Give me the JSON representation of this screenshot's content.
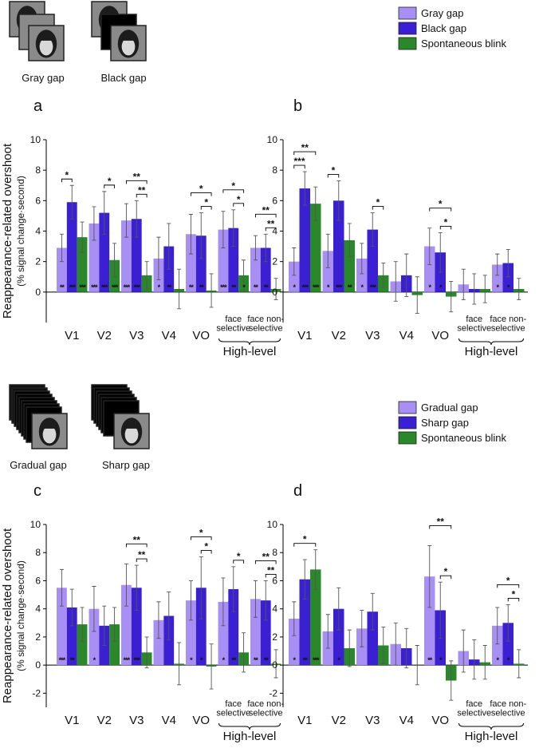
{
  "illustrations": [
    {
      "labels": [
        "Gray gap",
        "Black gap"
      ]
    },
    {
      "labels": [
        "Gradual gap",
        "Sharp gap"
      ]
    }
  ],
  "chart_data": [
    {
      "type": "bar",
      "panel": "a",
      "ylabel": "Reappearance-related overshoot",
      "ylabel_sub": "(% signal change·second)",
      "categories": [
        "V1",
        "V2",
        "V3",
        "V4",
        "VO",
        "face\nselective",
        "face non-\nselective"
      ],
      "group_label": "High-level",
      "ylim": [
        -2,
        10
      ],
      "yticks": [
        0,
        2,
        4,
        6,
        8,
        10
      ],
      "series": [
        {
          "color": "#a88ff4",
          "values": [
            2.9,
            4.5,
            4.7,
            2.2,
            3.8,
            4.1,
            2.9
          ],
          "errors": [
            0.9,
            1.1,
            1.1,
            1.4,
            1.3,
            1.2,
            0.8
          ],
          "stars": [
            "**",
            "***",
            "***",
            "*",
            "**",
            "***",
            "**"
          ]
        },
        {
          "color": "#3a20d2",
          "values": [
            5.9,
            5.2,
            4.8,
            3.0,
            3.7,
            4.2,
            2.9
          ],
          "errors": [
            1.1,
            1.4,
            1.2,
            1.5,
            1.5,
            1.2,
            0.9
          ],
          "stars": [
            "***",
            "***",
            "***",
            "**",
            "**",
            "**",
            "**"
          ]
        },
        {
          "color": "#2a882a",
          "values": [
            3.6,
            2.1,
            1.1,
            0.2,
            0.1,
            1.1,
            0.2
          ],
          "errors": [
            1.0,
            1.1,
            0.9,
            1.3,
            1.1,
            1.0,
            0.7
          ],
          "stars": [
            "***",
            "***",
            null,
            null,
            null,
            "*",
            null
          ]
        }
      ],
      "comparisons": [
        {
          "category": 0,
          "series": [
            0,
            1
          ],
          "label": "*"
        },
        {
          "category": 1,
          "series": [
            1,
            2
          ],
          "label": "*"
        },
        {
          "category": 2,
          "series": [
            1,
            2
          ],
          "label": "**"
        },
        {
          "category": 2,
          "series": [
            0,
            2
          ],
          "label": "**"
        },
        {
          "category": 4,
          "series": [
            1,
            2
          ],
          "label": "*"
        },
        {
          "category": 4,
          "series": [
            0,
            2
          ],
          "label": "*"
        },
        {
          "category": 5,
          "series": [
            1,
            2
          ],
          "label": "*"
        },
        {
          "category": 5,
          "series": [
            0,
            2
          ],
          "label": "*"
        },
        {
          "category": 6,
          "series": [
            1,
            2
          ],
          "label": "**"
        },
        {
          "category": 6,
          "series": [
            0,
            2
          ],
          "label": "**"
        }
      ]
    },
    {
      "type": "bar",
      "panel": "b",
      "legend": "top",
      "categories": [
        "V1",
        "V2",
        "V3",
        "V4",
        "VO",
        "face\nselective",
        "face non-\nselective"
      ],
      "group_label": "High-level",
      "ylim": [
        -2,
        10
      ],
      "yticks": [
        0,
        2,
        4,
        6,
        8,
        10
      ],
      "series": [
        {
          "name": "Gray gap",
          "color": "#a88ff4",
          "values": [
            2.0,
            2.7,
            2.2,
            0.7,
            3.0,
            0.5,
            1.8
          ],
          "errors": [
            0.9,
            1.1,
            1.0,
            1.3,
            1.2,
            1.0,
            0.7
          ],
          "stars": [
            "*",
            "*",
            "*",
            null,
            "*",
            null,
            "*"
          ]
        },
        {
          "name": "Black gap",
          "color": "#3a20d2",
          "values": [
            6.8,
            6.0,
            4.1,
            1.1,
            2.6,
            0.2,
            1.9
          ],
          "errors": [
            1.1,
            1.3,
            1.1,
            1.4,
            1.3,
            1.0,
            0.9
          ],
          "stars": [
            "***",
            "***",
            "***",
            null,
            "*",
            null,
            "*"
          ]
        },
        {
          "name": "Spontaneous blink",
          "color": "#2a882a",
          "values": [
            5.8,
            3.4,
            1.1,
            -0.2,
            -0.3,
            0.2,
            0.2
          ],
          "errors": [
            1.1,
            1.1,
            0.8,
            1.2,
            1.0,
            0.9,
            0.7
          ],
          "stars": [
            "***",
            "**",
            null,
            null,
            null,
            null,
            null
          ]
        }
      ],
      "comparisons": [
        {
          "category": 0,
          "series": [
            0,
            1
          ],
          "label": "***"
        },
        {
          "category": 0,
          "series": [
            0,
            2
          ],
          "label": "**"
        },
        {
          "category": 1,
          "series": [
            0,
            1
          ],
          "label": "*"
        },
        {
          "category": 2,
          "series": [
            1,
            2
          ],
          "label": "*"
        },
        {
          "category": 4,
          "series": [
            1,
            2
          ],
          "label": "*"
        },
        {
          "category": 4,
          "series": [
            0,
            2
          ],
          "label": "*"
        }
      ]
    },
    {
      "type": "bar",
      "panel": "c",
      "ylabel": "Reappearance-related overshoot",
      "ylabel_sub": "(% signal change·second)",
      "categories": [
        "V1",
        "V2",
        "V3",
        "V4",
        "VO",
        "face\nselective",
        "face non-\nselective"
      ],
      "group_label": "High-level",
      "ylim": [
        -3,
        10
      ],
      "yticks": [
        -2,
        0,
        2,
        4,
        6,
        8,
        10
      ],
      "series": [
        {
          "color": "#a88ff4",
          "values": [
            5.5,
            4.0,
            5.7,
            3.2,
            4.6,
            4.5,
            4.7
          ],
          "errors": [
            1.3,
            1.6,
            1.5,
            1.3,
            1.4,
            1.7,
            1.3
          ],
          "stars": [
            "***",
            "*",
            "***",
            null,
            "*",
            "*",
            "**"
          ]
        },
        {
          "color": "#3a20d2",
          "values": [
            4.1,
            2.8,
            5.5,
            3.5,
            5.5,
            5.4,
            4.6
          ],
          "errors": [
            1.3,
            1.4,
            1.6,
            1.7,
            2.2,
            1.6,
            1.4
          ],
          "stars": [
            "**",
            null,
            "***",
            null,
            "*",
            "**",
            "**"
          ]
        },
        {
          "color": "#2a882a",
          "values": [
            2.9,
            2.9,
            0.9,
            0.1,
            -0.1,
            0.9,
            0.1
          ],
          "errors": [
            1.2,
            1.2,
            1.1,
            1.5,
            1.6,
            1.4,
            1.0
          ],
          "stars": [
            null,
            null,
            null,
            null,
            null,
            null,
            null
          ]
        }
      ],
      "comparisons": [
        {
          "category": 2,
          "series": [
            1,
            2
          ],
          "label": "**"
        },
        {
          "category": 2,
          "series": [
            0,
            2
          ],
          "label": "**"
        },
        {
          "category": 4,
          "series": [
            1,
            2
          ],
          "label": "*"
        },
        {
          "category": 4,
          "series": [
            0,
            2
          ],
          "label": "*"
        },
        {
          "category": 5,
          "series": [
            1,
            2
          ],
          "label": "*"
        },
        {
          "category": 6,
          "series": [
            1,
            2
          ],
          "label": "**"
        },
        {
          "category": 6,
          "series": [
            0,
            2
          ],
          "label": "**"
        }
      ]
    },
    {
      "type": "bar",
      "panel": "d",
      "legend": "top",
      "categories": [
        "V1",
        "V2",
        "V3",
        "V4",
        "VO",
        "face\nselective",
        "face non-\nselective"
      ],
      "group_label": "High-level",
      "ylim": [
        -3,
        10
      ],
      "yticks": [
        -2,
        0,
        2,
        4,
        6,
        8,
        10
      ],
      "series": [
        {
          "name": "Gradual gap",
          "color": "#a88ff4",
          "values": [
            3.3,
            2.4,
            2.6,
            1.5,
            6.3,
            1.0,
            2.8
          ],
          "errors": [
            1.2,
            1.2,
            1.3,
            1.5,
            2.2,
            1.5,
            1.3
          ],
          "stars": [
            "*",
            null,
            null,
            null,
            "**",
            null,
            "*"
          ]
        },
        {
          "name": "Sharp gap",
          "color": "#3a20d2",
          "values": [
            6.1,
            4.0,
            3.8,
            1.2,
            3.9,
            0.4,
            3.0
          ],
          "errors": [
            1.4,
            1.5,
            1.3,
            1.4,
            2.0,
            1.4,
            1.3
          ],
          "stars": [
            "**",
            "*",
            null,
            null,
            "*",
            null,
            "*"
          ]
        },
        {
          "name": "Spontaneous blink",
          "color": "#2a882a",
          "values": [
            6.8,
            1.2,
            1.4,
            0.0,
            -1.1,
            0.2,
            0.1
          ],
          "errors": [
            1.4,
            1.3,
            1.3,
            1.4,
            1.4,
            1.2,
            1.0
          ],
          "stars": [
            "***",
            null,
            null,
            null,
            null,
            null,
            null
          ]
        }
      ],
      "comparisons": [
        {
          "category": 0,
          "series": [
            0,
            2
          ],
          "label": "*"
        },
        {
          "category": 4,
          "series": [
            1,
            2
          ],
          "label": "*"
        },
        {
          "category": 4,
          "series": [
            0,
            2
          ],
          "label": "**"
        },
        {
          "category": 6,
          "series": [
            1,
            2
          ],
          "label": "*"
        },
        {
          "category": 6,
          "series": [
            0,
            2
          ],
          "label": "*"
        }
      ]
    }
  ]
}
